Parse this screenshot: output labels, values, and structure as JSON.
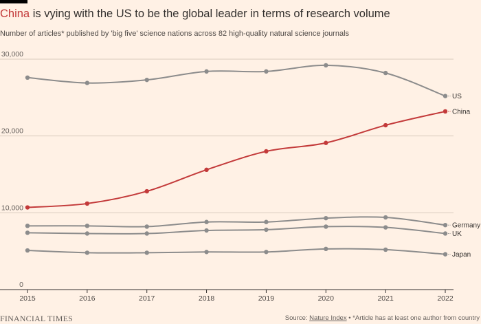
{
  "header": {
    "title_highlight": "China",
    "title_rest": " is vying with the US to be the global leader in terms of research volume",
    "subtitle": "Number of articles* published by 'big five' science nations across 82 high-quality natural science journals"
  },
  "footer": {
    "brand": "FINANCIAL TIMES",
    "source_prefix": "Source: ",
    "source_link": "Nature Index",
    "source_note": " • *Article has at least one author from country"
  },
  "colors": {
    "background": "#fff1e5",
    "highlight": "#c33a3a",
    "muted_series": "#8c8c8c",
    "grid": "#d9cbbd",
    "axis": "#33302e"
  },
  "chart_data": {
    "type": "line",
    "title": "China is vying with the US to be the global leader in terms of research volume",
    "subtitle": "Number of articles* published by 'big five' science nations across 82 high-quality natural science journals",
    "x": [
      2015,
      2016,
      2017,
      2018,
      2019,
      2020,
      2021,
      2022
    ],
    "xlim": [
      2015,
      2022
    ],
    "ylim": [
      0,
      30000
    ],
    "yticks": [
      0,
      10000,
      20000,
      30000
    ],
    "ytick_labels": [
      "0",
      "10,000",
      "20,000",
      "30,000"
    ],
    "grid": true,
    "legend": "direct labels at line ends (right)",
    "series": [
      {
        "name": "US",
        "highlight": false,
        "values": [
          27600,
          26900,
          27300,
          28400,
          28400,
          29200,
          28200,
          25200
        ]
      },
      {
        "name": "China",
        "highlight": true,
        "values": [
          10700,
          11200,
          12800,
          15600,
          18000,
          19100,
          21400,
          23200
        ]
      },
      {
        "name": "Germany",
        "highlight": false,
        "values": [
          8300,
          8300,
          8200,
          8800,
          8800,
          9300,
          9400,
          8400
        ]
      },
      {
        "name": "UK",
        "highlight": false,
        "values": [
          7400,
          7300,
          7300,
          7700,
          7800,
          8200,
          8100,
          7300
        ]
      },
      {
        "name": "Japan",
        "highlight": false,
        "values": [
          5100,
          4800,
          4800,
          4900,
          4900,
          5300,
          5200,
          4600
        ]
      }
    ]
  }
}
